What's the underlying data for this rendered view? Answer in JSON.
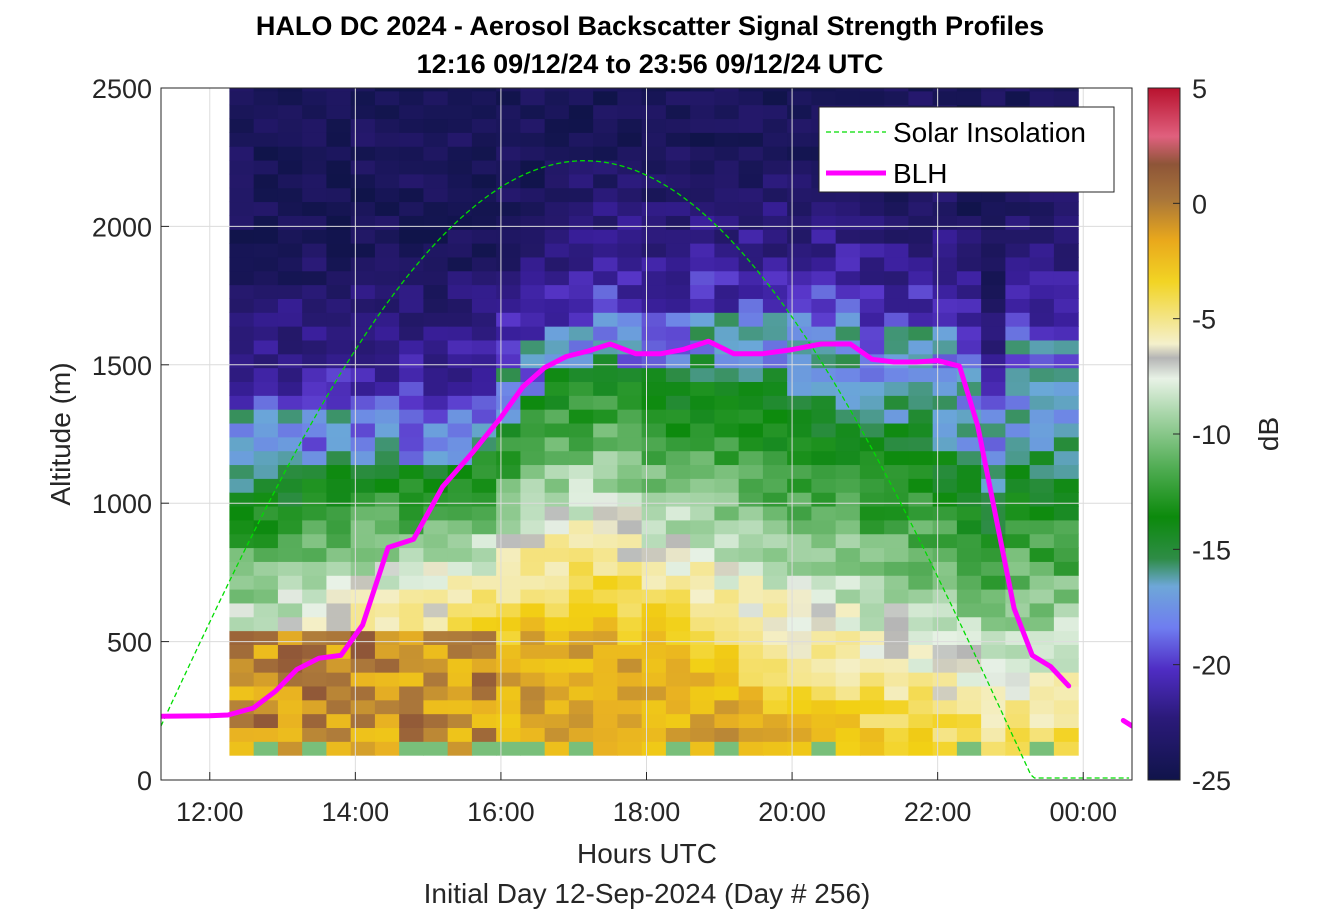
{
  "chart_data": {
    "type": "heatmap",
    "title": "HALO DC 2024 - Aerosol Backscatter Signal Strength Profiles",
    "subtitle": "12:16 09/12/24 to 23:56 09/12/24  UTC",
    "xlabel": "Hours UTC",
    "footer": "Initial Day 12-Sep-2024 (Day # 256)",
    "ylabel": "Altitude (m)",
    "colorbar_label": "dB",
    "xlim": [
      11.33,
      24.67
    ],
    "ylim": [
      0,
      2500
    ],
    "clim": [
      -25,
      5
    ],
    "x_ticks": [
      12,
      14,
      16,
      18,
      20,
      22,
      24
    ],
    "x_tick_labels": [
      "12:00",
      "14:00",
      "16:00",
      "18:00",
      "20:00",
      "22:00",
      "00:00"
    ],
    "y_ticks": [
      0,
      500,
      1000,
      1500,
      2000,
      2500
    ],
    "y_tick_labels": [
      "0",
      "500",
      "1000",
      "1500",
      "2000",
      "2500"
    ],
    "colorbar_ticks": [
      5,
      0,
      -5,
      -10,
      -15,
      -20,
      -25
    ],
    "colorbar_tick_labels": [
      "5",
      "0",
      "-5",
      "-10",
      "-15",
      "-20",
      "-25"
    ],
    "grid": true,
    "legend_position": "top-right",
    "legend": [
      "Solar Insolation",
      "BLH"
    ],
    "series": [
      {
        "name": "BLH",
        "color": "#ff00ff",
        "x": [
          11.33,
          12.0,
          12.25,
          12.6,
          12.9,
          13.2,
          13.5,
          13.8,
          14.1,
          14.45,
          14.8,
          15.2,
          15.6,
          16.0,
          16.3,
          16.6,
          16.9,
          17.2,
          17.5,
          17.85,
          18.2,
          18.5,
          18.85,
          19.2,
          19.6,
          20.0,
          20.4,
          20.8,
          21.1,
          21.4,
          21.7,
          22.0,
          22.3,
          22.55,
          22.8,
          23.05,
          23.3,
          23.55,
          23.8,
          24.1
        ],
        "y": [
          230,
          232,
          235,
          260,
          320,
          400,
          440,
          450,
          560,
          840,
          870,
          1060,
          1180,
          1310,
          1420,
          1490,
          1530,
          1550,
          1575,
          1540,
          1540,
          1555,
          1585,
          1540,
          1540,
          1555,
          1575,
          1575,
          1520,
          1510,
          1510,
          1515,
          1495,
          1280,
          950,
          620,
          450,
          410,
          340,
          200
        ]
      },
      {
        "name": "Solar Insolation",
        "color": "#00dd00",
        "style": "dashed",
        "sunrise": 11.0,
        "sunset": 23.3,
        "peak_hour": 17.15,
        "peak_altitude": 2230
      }
    ],
    "heatmap_x_range": [
      12.27,
      23.93
    ],
    "heatmap_y_range": [
      90,
      2500
    ],
    "columns": 35,
    "layer_profile": "aerosol boundary layer 0 to BLH with strong backscatter near surface, clean free troposphere above"
  }
}
